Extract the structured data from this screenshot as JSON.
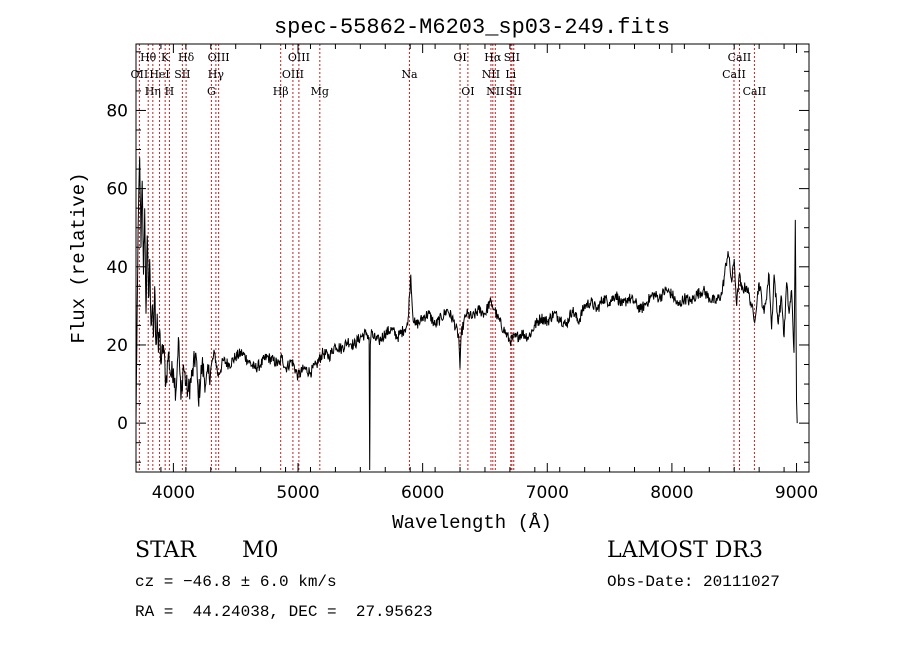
{
  "chart_data": {
    "type": "line",
    "title": "spec-55862-M6203_sp03-249.fits",
    "xlabel": "Wavelength (Å)",
    "ylabel": "Flux (relative)",
    "xlim": [
      3700,
      9100
    ],
    "ylim": [
      -12.5,
      97
    ],
    "x_ticks": [
      4000,
      5000,
      6000,
      7000,
      8000,
      9000
    ],
    "y_ticks": [
      0,
      20,
      40,
      60,
      80
    ],
    "grid": false,
    "lines": [
      {
        "label": "OII",
        "wavelength": 3727,
        "row": 2
      },
      {
        "label": "Hθ",
        "wavelength": 3798,
        "row": 1
      },
      {
        "label": "Hη",
        "wavelength": 3835,
        "row": 3
      },
      {
        "label": "HeI",
        "wavelength": 3889,
        "row": 2
      },
      {
        "label": "K",
        "wavelength": 3934,
        "row": 1
      },
      {
        "label": "H",
        "wavelength": 3968,
        "row": 3
      },
      {
        "label": "SII",
        "wavelength": 4072,
        "row": 2
      },
      {
        "label": "Hδ",
        "wavelength": 4102,
        "row": 1
      },
      {
        "label": "G",
        "wavelength": 4305,
        "row": 3
      },
      {
        "label": "Hγ",
        "wavelength": 4341,
        "row": 2
      },
      {
        "label": "OIII",
        "wavelength": 4363,
        "row": 1
      },
      {
        "label": "Hβ",
        "wavelength": 4861,
        "row": 3
      },
      {
        "label": "OIII",
        "wavelength": 4959,
        "row": 2
      },
      {
        "label": "OIII",
        "wavelength": 5007,
        "row": 1
      },
      {
        "label": "Mg",
        "wavelength": 5175,
        "row": 3
      },
      {
        "label": "Na",
        "wavelength": 5894,
        "row": 2
      },
      {
        "label": "OI",
        "wavelength": 6300,
        "row": 1
      },
      {
        "label": "OI",
        "wavelength": 6363,
        "row": 3
      },
      {
        "label": "NII",
        "wavelength": 6548,
        "row": 2
      },
      {
        "label": "Hα",
        "wavelength": 6563,
        "row": 1
      },
      {
        "label": "NII",
        "wavelength": 6583,
        "row": 3
      },
      {
        "label": "Li",
        "wavelength": 6707,
        "row": 2
      },
      {
        "label": "SII",
        "wavelength": 6716,
        "row": 1
      },
      {
        "label": "SII",
        "wavelength": 6731,
        "row": 3
      },
      {
        "label": "CaII",
        "wavelength": 8498,
        "row": 2
      },
      {
        "label": "CaII",
        "wavelength": 8542,
        "row": 1
      },
      {
        "label": "CaII",
        "wavelength": 8662,
        "row": 3
      }
    ],
    "series": [
      {
        "name": "flux",
        "x": [
          3700,
          3710,
          3720,
          3730,
          3740,
          3750,
          3760,
          3770,
          3780,
          3790,
          3800,
          3810,
          3820,
          3830,
          3840,
          3850,
          3860,
          3870,
          3880,
          3890,
          3900,
          3920,
          3940,
          3960,
          3980,
          4000,
          4020,
          4040,
          4060,
          4080,
          4100,
          4120,
          4150,
          4180,
          4200,
          4230,
          4260,
          4300,
          4330,
          4360,
          4400,
          4450,
          4500,
          4550,
          4600,
          4650,
          4700,
          4750,
          4800,
          4850,
          4870,
          4900,
          4950,
          5000,
          5050,
          5100,
          5150,
          5200,
          5250,
          5300,
          5350,
          5400,
          5450,
          5500,
          5550,
          5570,
          5575,
          5580,
          5585,
          5590,
          5600,
          5650,
          5700,
          5750,
          5800,
          5850,
          5880,
          5895,
          5905,
          5920,
          5940,
          5980,
          6000,
          6050,
          6100,
          6150,
          6200,
          6250,
          6290,
          6300,
          6310,
          6350,
          6400,
          6450,
          6500,
          6540,
          6560,
          6580,
          6600,
          6650,
          6700,
          6750,
          6800,
          6850,
          6900,
          6950,
          7000,
          7050,
          7100,
          7150,
          7200,
          7250,
          7300,
          7350,
          7400,
          7450,
          7500,
          7550,
          7600,
          7650,
          7700,
          7750,
          7800,
          7850,
          7900,
          7950,
          8000,
          8050,
          8100,
          8150,
          8200,
          8250,
          8300,
          8350,
          8400,
          8450,
          8480,
          8500,
          8520,
          8540,
          8560,
          8600,
          8640,
          8660,
          8700,
          8740,
          8780,
          8800,
          8820,
          8850,
          8880,
          8900,
          8920,
          8940,
          8960,
          8980,
          8990,
          9000,
          9005
        ],
        "values": [
          0,
          30,
          55,
          68,
          45,
          62,
          38,
          55,
          28,
          48,
          32,
          42,
          25,
          30,
          22,
          35,
          20,
          28,
          18,
          24,
          15,
          20,
          10,
          18,
          12,
          14,
          8,
          22,
          6,
          15,
          10,
          8,
          12,
          18,
          6,
          15,
          10,
          14,
          18,
          12,
          16,
          15,
          17,
          18,
          16,
          14,
          15,
          17,
          16,
          15,
          17,
          14,
          16,
          12,
          14,
          13,
          15,
          18,
          17,
          20,
          19,
          21,
          20,
          22,
          23,
          22,
          -12,
          20,
          22,
          24,
          22,
          21,
          23,
          24,
          22,
          24,
          25,
          33,
          38,
          28,
          25,
          26,
          27,
          28,
          25,
          27,
          29,
          26,
          22,
          14,
          23,
          28,
          27,
          29,
          28,
          31,
          30,
          29,
          27,
          24,
          21,
          22,
          23,
          22,
          25,
          27,
          26,
          28,
          27,
          25,
          29,
          26,
          30,
          31,
          29,
          32,
          31,
          33,
          30,
          32,
          31,
          29,
          31,
          33,
          32,
          34,
          33,
          30,
          32,
          31,
          33,
          34,
          32,
          31,
          33,
          44,
          36,
          42,
          30,
          38,
          34,
          35,
          30,
          26,
          36,
          28,
          38,
          24,
          38,
          26,
          32,
          22,
          36,
          28,
          34,
          18,
          52,
          6,
          0
        ]
      }
    ]
  },
  "info": {
    "object_class": "STAR",
    "subclass": "M0",
    "survey": "LAMOST DR3",
    "velocity": "cz = −46.8 ± 6.0 km/s",
    "obs_date": "Obs-Date: 20111027",
    "coordinates": "RA =  44.24038, DEC =  27.95623"
  }
}
